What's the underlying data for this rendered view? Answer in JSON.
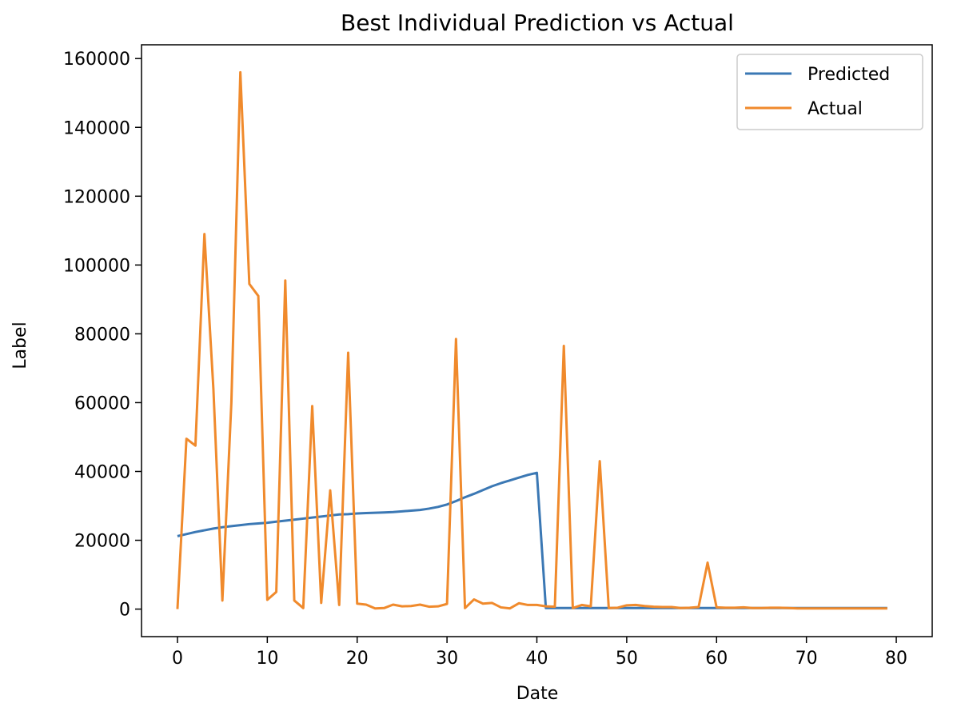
{
  "chart_data": {
    "type": "line",
    "title": "Best Individual Prediction vs Actual",
    "xlabel": "Date",
    "ylabel": "Label",
    "xlim": [
      -4,
      84
    ],
    "ylim": [
      -8000,
      164000
    ],
    "x_ticks": [
      0,
      10,
      20,
      30,
      40,
      50,
      60,
      70,
      80
    ],
    "y_ticks": [
      0,
      20000,
      40000,
      60000,
      80000,
      100000,
      120000,
      140000,
      160000
    ],
    "grid": false,
    "legend_position": "upper right",
    "series": [
      {
        "name": "Predicted",
        "color": "#3b78b4",
        "x": [
          0,
          1,
          2,
          3,
          4,
          5,
          6,
          7,
          8,
          9,
          10,
          11,
          12,
          13,
          14,
          15,
          16,
          17,
          18,
          19,
          20,
          21,
          22,
          23,
          24,
          25,
          26,
          27,
          28,
          29,
          30,
          31,
          32,
          33,
          34,
          35,
          36,
          37,
          38,
          39,
          40,
          41,
          42,
          43,
          44,
          45,
          46,
          47,
          48,
          49,
          50,
          51,
          52,
          53,
          54,
          55,
          56,
          57,
          58,
          59,
          60,
          61,
          62,
          63,
          64,
          65,
          66,
          67,
          68,
          69,
          70,
          71,
          72,
          73,
          74,
          75,
          76,
          77,
          78,
          79
        ],
        "values": [
          21200,
          21800,
          22400,
          22900,
          23400,
          23800,
          24100,
          24400,
          24700,
          24900,
          25100,
          25400,
          25700,
          26000,
          26300,
          26600,
          26900,
          27200,
          27500,
          27600,
          27800,
          27900,
          28000,
          28100,
          28200,
          28400,
          28600,
          28800,
          29200,
          29700,
          30400,
          31400,
          32500,
          33500,
          34600,
          35700,
          36600,
          37400,
          38200,
          39000,
          39600,
          300,
          300,
          300,
          300,
          300,
          300,
          300,
          300,
          300,
          300,
          300,
          300,
          300,
          300,
          300,
          300,
          300,
          300,
          300,
          300,
          300,
          300,
          300,
          300,
          300,
          300,
          300,
          300,
          300,
          300,
          300,
          300,
          300,
          300,
          300,
          300,
          300,
          300,
          300
        ]
      },
      {
        "name": "Actual",
        "color": "#f08a2c",
        "x": [
          0,
          1,
          2,
          3,
          4,
          5,
          6,
          7,
          8,
          9,
          10,
          11,
          12,
          13,
          14,
          15,
          16,
          17,
          18,
          19,
          20,
          21,
          22,
          23,
          24,
          25,
          26,
          27,
          28,
          29,
          30,
          31,
          32,
          33,
          34,
          35,
          36,
          37,
          38,
          39,
          40,
          41,
          42,
          43,
          44,
          45,
          46,
          47,
          48,
          49,
          50,
          51,
          52,
          53,
          54,
          55,
          56,
          57,
          58,
          59,
          60,
          61,
          62,
          63,
          64,
          65,
          66,
          67,
          68,
          69,
          70,
          71,
          72,
          73,
          74,
          75,
          76,
          77,
          78,
          79
        ],
        "values": [
          0,
          49500,
          47500,
          109000,
          64000,
          2500,
          60000,
          156000,
          94500,
          91000,
          2700,
          5000,
          95500,
          2500,
          300,
          59000,
          1800,
          34500,
          1200,
          74500,
          1600,
          1300,
          200,
          300,
          1300,
          800,
          900,
          1300,
          700,
          800,
          1500,
          78500,
          300,
          2800,
          1600,
          1800,
          500,
          200,
          1700,
          1200,
          1200,
          800,
          700,
          76500,
          300,
          1200,
          800,
          43000,
          300,
          400,
          1100,
          1200,
          900,
          700,
          600,
          600,
          300,
          400,
          600,
          13500,
          500,
          400,
          400,
          500,
          300,
          300,
          400,
          400,
          300,
          200,
          200,
          200,
          200,
          200,
          200,
          200,
          200,
          200,
          200,
          200
        ]
      }
    ]
  }
}
